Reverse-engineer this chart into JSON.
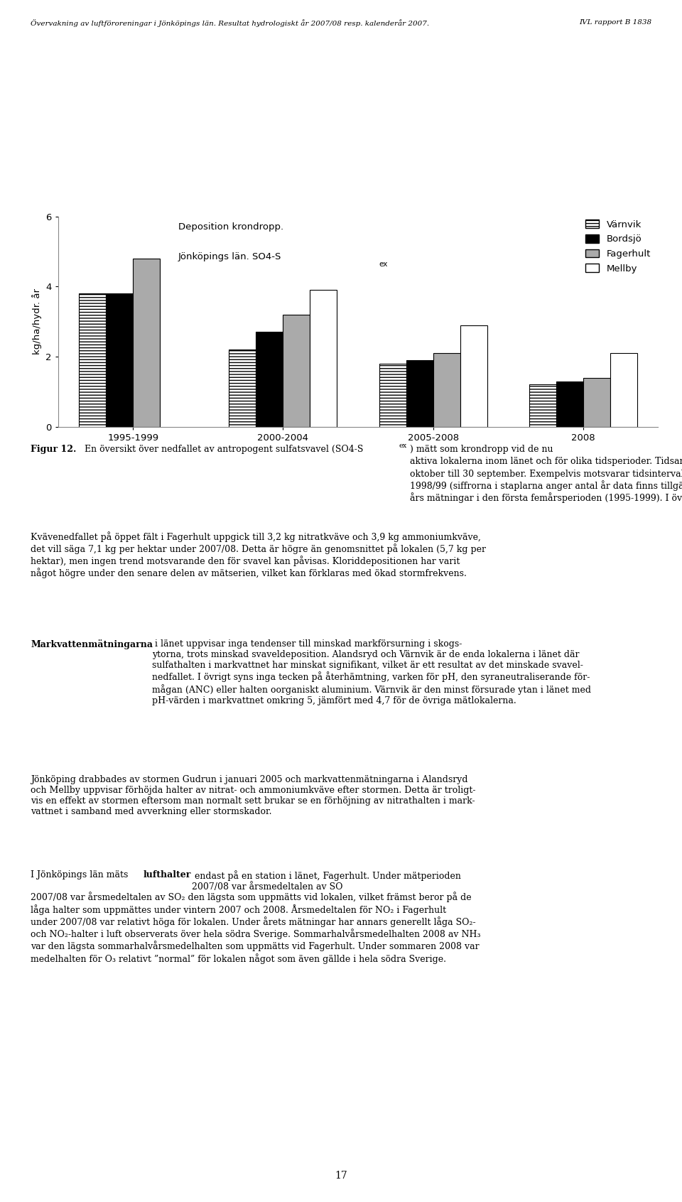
{
  "page_header_left": "Övervakning av luftföroreningar i Jönköpings län. Resultat hydrologiskt år 2007/08 resp. kalenderår 2007.",
  "page_header_right": "IVL rapport B 1838",
  "page_number": "17",
  "chart_title_line1": "Deposition krondropp.",
  "chart_title_line2": "Jönköpings län. SO4-S",
  "chart_title_sub": "ex",
  "ylabel": "kg/ha/hydr. år",
  "categories": [
    "1995-1999",
    "2000-2004",
    "2005-2008",
    "2008"
  ],
  "series_names": [
    "Värnvik",
    "Bordsjö",
    "Fagerhult",
    "Mellby"
  ],
  "series_values": [
    [
      3.8,
      2.2,
      1.8,
      1.2
    ],
    [
      3.8,
      2.7,
      1.9,
      1.3
    ],
    [
      4.8,
      3.2,
      2.1,
      1.4
    ],
    [
      null,
      3.9,
      2.9,
      2.1
    ]
  ],
  "face_colors": [
    "#ffffff",
    "#000000",
    "#aaaaaa",
    "#ffffff"
  ],
  "hatches": [
    "////",
    "",
    "",
    ""
  ],
  "edge_colors": [
    "#000000",
    "#000000",
    "#000000",
    "#000000"
  ],
  "ylim": [
    0,
    6
  ],
  "yticks": [
    0,
    2,
    4,
    6
  ],
  "bar_width": 0.18,
  "background_color": "#ffffff",
  "fig_caption": "Figur 12.",
  "fig_caption_rest": " En översikt över nedfallet av antropogent sulfatsvavel (SO4-S",
  "fig_caption_sub": "ex",
  "fig_caption_end": ") mätt som krondropp vid de nu\naktiva lokalerna inom länet och för olika tidsperioder. Tidsangivelserna gäller hydrologiska år, d.v.s. från 1\noktober till 30 september. Exempelvis motsvarar tidsintervallet 1995-1999 de hydrologiska åren 1994/95 –\n1998/99 (siffrorna i staplarna anger antal år data finns tillgängligt). För Mellby och Värnvik ingår endast tre\nårs mätningar i den första femårsperioden (1995-1999). I övrigt finns alla årsdata.",
  "body_para1": "Kvävenedfallet på öppet fält i Fagerhult uppgick till 3,2 kg nitratkväve och 3,9 kg ammoniumkväve,\ndet vill säga 7,1 kg per hektar under 2007/08. Detta är högre än genomsnittet på lokalen (5,7 kg per\nhektar), men ingen trend motsvarande den för svavel kan påvisas. Kloriddepositionen har varit\nnågot högre under den senare delen av mätserien, vilket kan förklaras med ökad stormfrekvens.",
  "body_para2_bold": "Markvattenmätningarna",
  "body_para2_rest": " i länet uppvisar inga tendenser till minskad markförsurning i skogs-\nytorna, trots minskad svaveldeposition. Alandsryd och Värnvik är de enda lokalerna i länet där\nsulfathalten i markvattnet har minskat signifikant, vilket är ett resultat av det minskade svavel-\nnedfallet. I övrigt syns inga tecken på återhämtning, varken för pH, den syraneutraliserande för-\nmågan (ANC) eller halten oorganiskt aluminium. Värnvik är den minst försurade ytan i länet med\npH-värden i markvattnet omkring 5, jämfört med 4,7 för de övriga mätlokalerna.",
  "body_para3": "Jönköping drabbades av stormen Gudrun i januari 2005 och markvattenmätningarna i Alandsryd\noch Mellby uppvisar förhöjda halter av nitrat- och ammoniumkväve efter stormen. Detta är troligt-\nvis en effekt av stormen eftersom man normalt sett brukar se en förhöjning av nitrathalten i mark-\nvattnet i samband med avverkning eller stormskador.",
  "body_para4_start": "I Jönköpings län mäts ",
  "body_para4_bold": "lufthalter",
  "body_para4_rest": " endast på en station i länet, Fagerhult. Under mätperioden\n2007/08 var årsmedeltalen av SO",
  "body_para4_sub1": "2",
  "body_para4_mid": " den lägsta som uppmätts vid lokalen, vilket främst beror på de\nläga halter som uppmättes under vintern 2007 och 2008. Årsmedeltalen för NO",
  "body_para4_sub2": "2",
  "body_para4_mid2": " i Fagerhult\nunder 2007/08 var relativt höga för lokalen. Under årets mätningar har annars generellt låga SO",
  "body_para4_sub3": "2",
  "body_para4_mid3": "-\noch NO",
  "body_para4_sub4": "2",
  "body_para4_mid4": "-halter i luft observerats över hela södra Sverige. Sommarhalvårsmedelhalten 2008 av NH",
  "body_para4_sub5": "3",
  "body_para4_mid5": "\nvar den lägsta sommarhalvårsmedelhalten som uppmätts vid Fagerhult. Under sommaren 2008 var\nmedelhalten för O",
  "body_para4_sub6": "3",
  "body_para4_end": " relativt \"normal\" för lokalen något som även gällde i hela södra Sverige."
}
